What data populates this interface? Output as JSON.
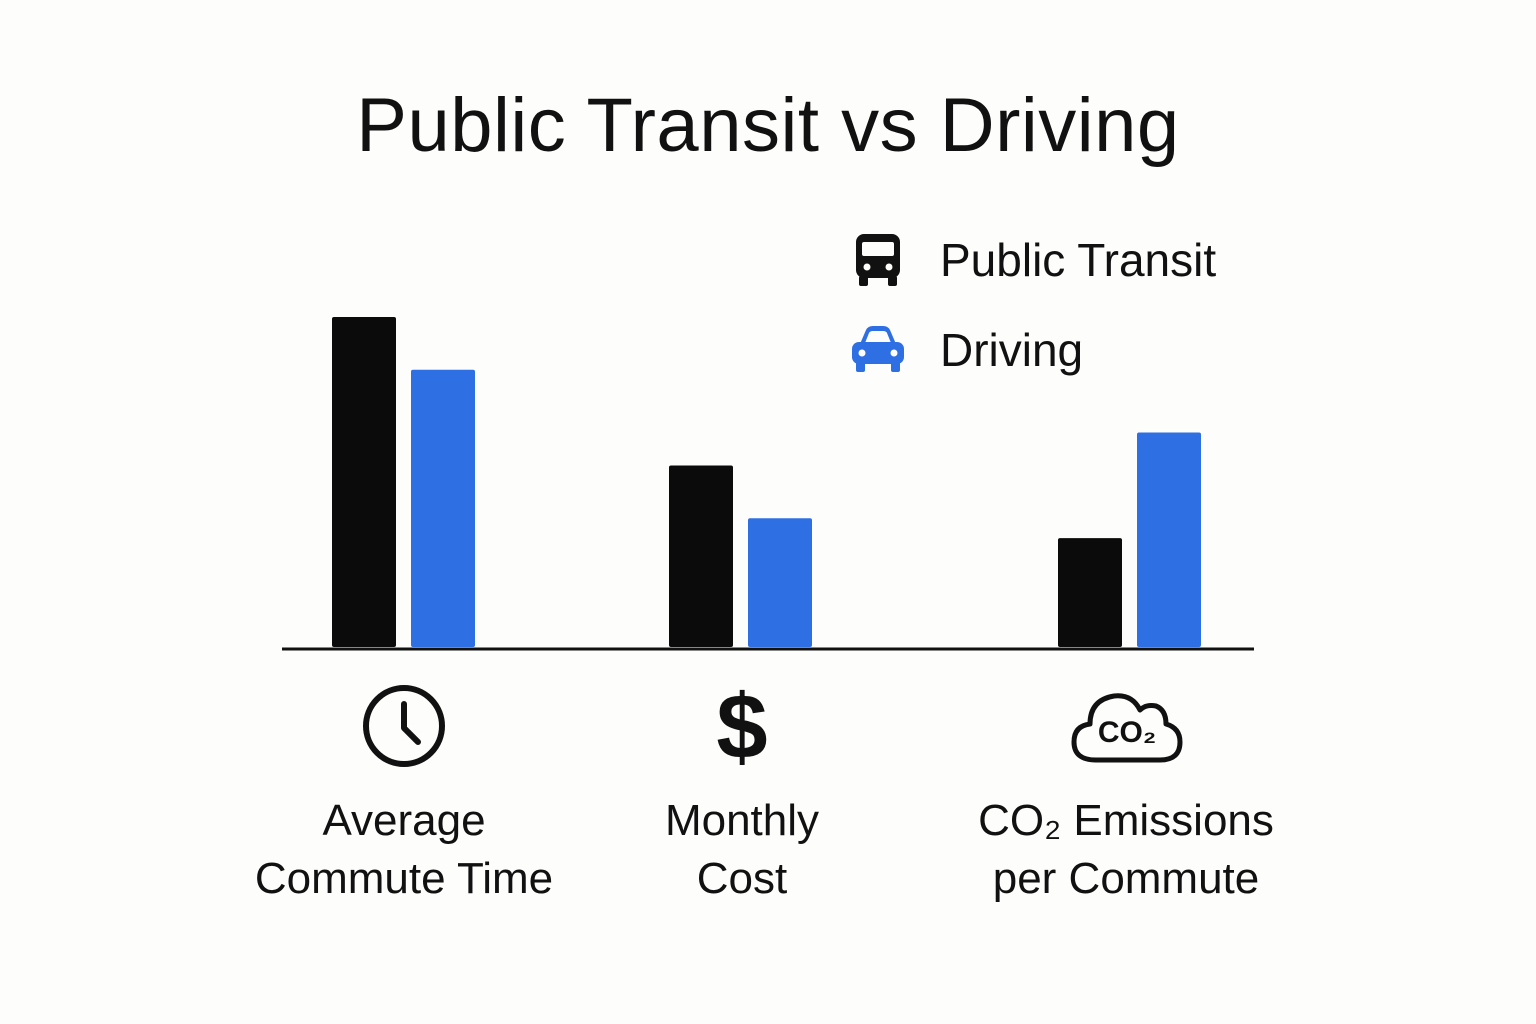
{
  "chart_data": {
    "type": "bar",
    "title": "Public Transit vs Driving",
    "categories": [
      {
        "line1": "Average",
        "line2": "Commute Time",
        "icon": "clock-icon"
      },
      {
        "line1": "Monthly",
        "line2": "Cost",
        "icon": "dollar-icon"
      },
      {
        "line1": "CO₂ Emissions",
        "line2": "per Commute",
        "icon": "co2-cloud-icon"
      }
    ],
    "series": [
      {
        "name": "Public Transit",
        "icon": "bus-icon",
        "color": "#0b0b0b",
        "values": [
          100,
          55,
          33
        ]
      },
      {
        "name": "Driving",
        "icon": "car-icon",
        "color": "#2f6fe4",
        "values": [
          84,
          39,
          65
        ]
      }
    ],
    "ylim": [
      0,
      100
    ],
    "xlabel": "",
    "ylabel": "",
    "grid": false,
    "legend_position": "top-right"
  },
  "co2_icon_text": "CO₂",
  "dollar_glyph": "$"
}
